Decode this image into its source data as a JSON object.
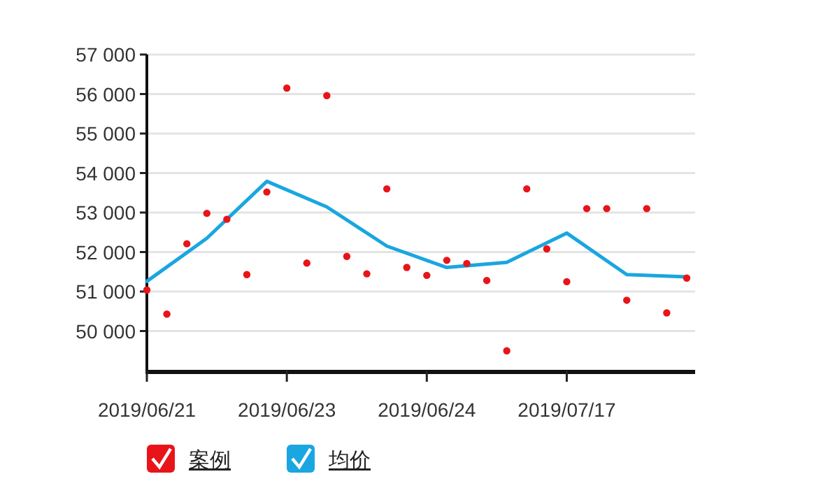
{
  "chart_data": {
    "type": "scatter",
    "categories": [
      "2019/06/21",
      null,
      null,
      null,
      null,
      null,
      null,
      "2019/06/23",
      null,
      null,
      null,
      null,
      null,
      null,
      "2019/06/24",
      null,
      null,
      null,
      null,
      null,
      null,
      "2019/07/17",
      null,
      null,
      null,
      null,
      null,
      null
    ],
    "series": [
      {
        "name": "案例",
        "color": "#e8141a",
        "marker": "circle",
        "values": [
          51040,
          50430,
          52210,
          52980,
          52830,
          51430,
          53520,
          56150,
          51720,
          55960,
          51890,
          51450,
          53600,
          51610,
          51410,
          51790,
          51710,
          51280,
          49500,
          53600,
          52080,
          51250,
          53100,
          53100,
          50780,
          53100,
          50460,
          51340
        ]
      },
      {
        "name": "均价",
        "type": "line",
        "color": "#1aa6e0",
        "line_style": "solid",
        "values": [
          51260,
          null,
          null,
          52350,
          null,
          null,
          53790,
          null,
          null,
          53140,
          null,
          null,
          52150,
          null,
          null,
          51610,
          null,
          null,
          51740,
          null,
          null,
          52480,
          null,
          null,
          51430,
          null,
          null,
          51370
        ]
      }
    ],
    "ylim": [
      49000,
      57000
    ],
    "yticks": [
      {
        "value": 50000,
        "label": "50 000"
      },
      {
        "value": 51000,
        "label": "51 000"
      },
      {
        "value": 52000,
        "label": "52 000"
      },
      {
        "value": 53000,
        "label": "53 000"
      },
      {
        "value": 54000,
        "label": "54 000"
      },
      {
        "value": 55000,
        "label": "55 000"
      },
      {
        "value": 56000,
        "label": "56 000"
      },
      {
        "value": 57000,
        "label": "57 000"
      }
    ],
    "grid": "y",
    "legend": "bottom left"
  }
}
